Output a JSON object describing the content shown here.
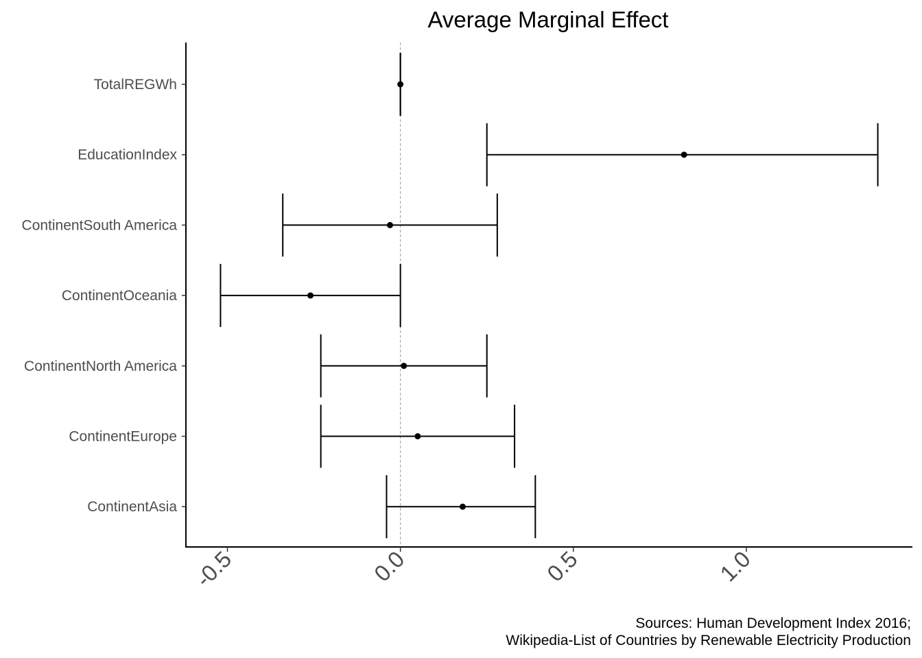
{
  "chart_data": {
    "type": "scatter",
    "subtype": "coefficient-plot-with-error-bars",
    "title": "Average Marginal Effect",
    "xlabel": "",
    "ylabel": "",
    "xlim": [
      -0.62,
      1.48
    ],
    "x_ticks": [
      -0.5,
      0.0,
      0.5,
      1.0
    ],
    "x_tick_labels": [
      "-0.5",
      "0.0",
      "0.5",
      "1.0"
    ],
    "reference_line": 0,
    "grid": false,
    "legend": "none",
    "colors": {
      "marks": "#000000",
      "reference_line": "#999999",
      "tick_labels": "#4d4d4d"
    },
    "caption_lines": [
      "Sources: Human Development Index 2016;",
      "Wikipedia-List of Countries by Renewable Electricity Production"
    ],
    "points": [
      {
        "label": "TotalREGWh",
        "estimate": 0.0,
        "lower": 0.0,
        "upper": 0.0
      },
      {
        "label": "EducationIndex",
        "estimate": 0.82,
        "lower": 0.25,
        "upper": 1.38
      },
      {
        "label": "ContinentSouth America",
        "estimate": -0.03,
        "lower": -0.34,
        "upper": 0.28
      },
      {
        "label": "ContinentOceania",
        "estimate": -0.26,
        "lower": -0.52,
        "upper": 0.0
      },
      {
        "label": "ContinentNorth America",
        "estimate": 0.01,
        "lower": -0.23,
        "upper": 0.25
      },
      {
        "label": "ContinentEurope",
        "estimate": 0.05,
        "lower": -0.23,
        "upper": 0.33
      },
      {
        "label": "ContinentAsia",
        "estimate": 0.18,
        "lower": -0.04,
        "upper": 0.39
      }
    ]
  }
}
